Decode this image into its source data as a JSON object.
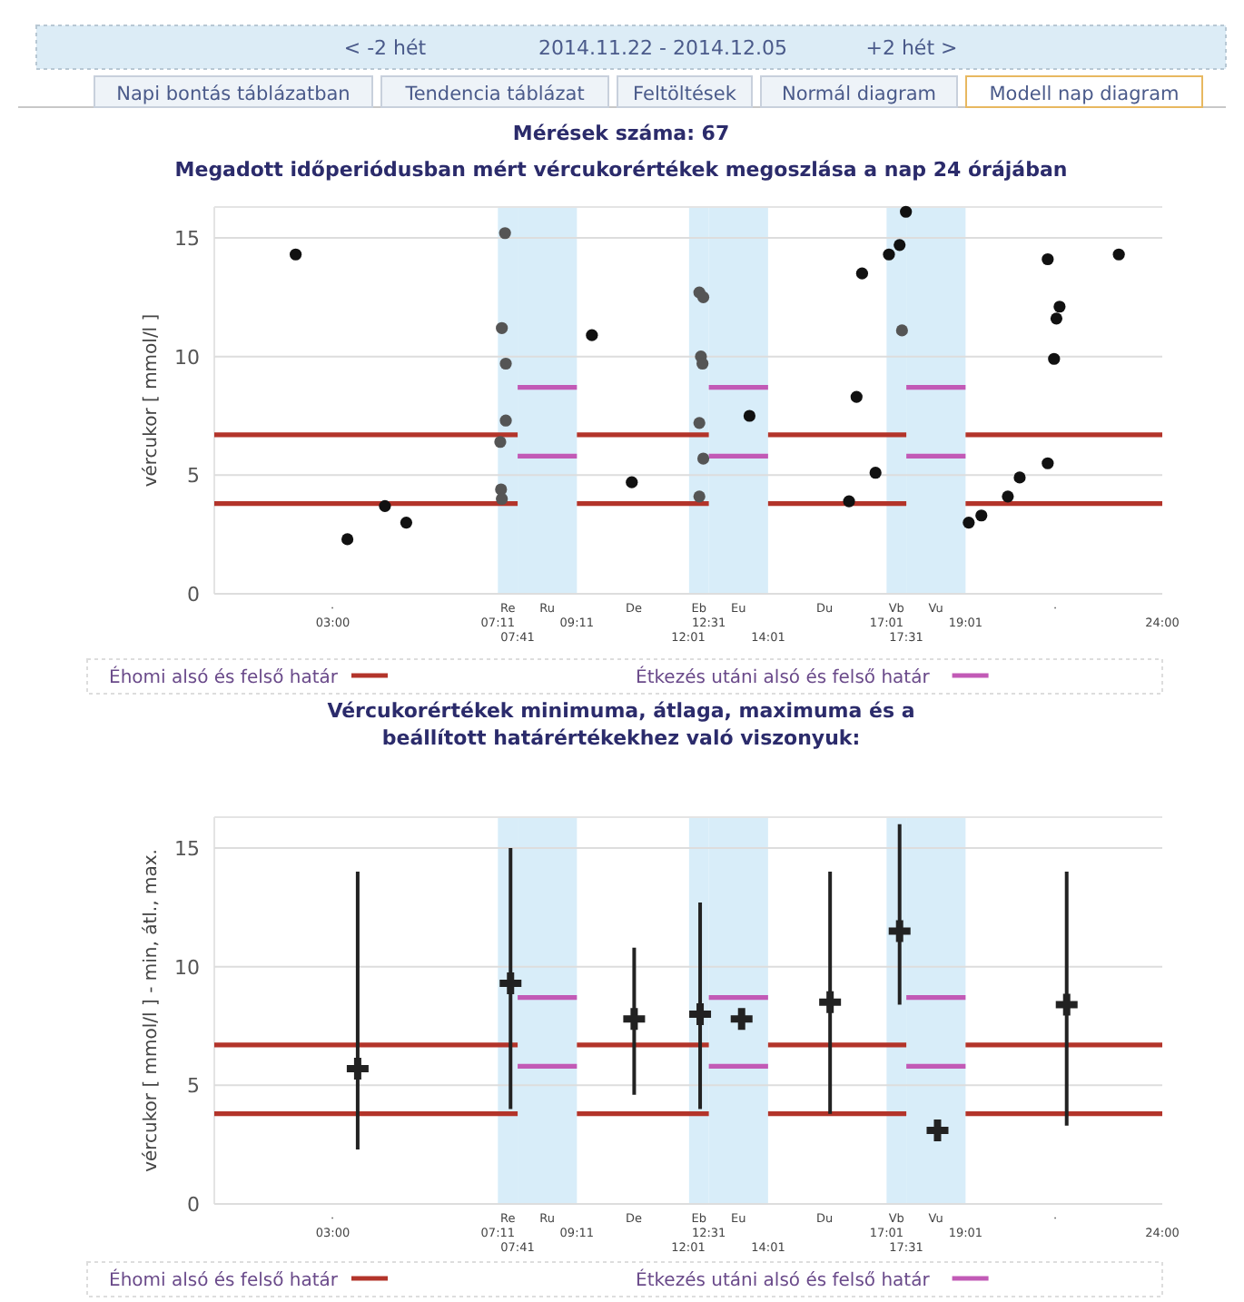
{
  "chart_data": [
    {
      "type": "other",
      "annotations": [
        "< -2 hét",
        "2014.11.22 - 2014.12.05",
        "+2 hét >",
        "Napi bontás táblázatban",
        "Tendencia táblázat",
        "Feltöltések",
        "Normál diagram",
        "Modell nap diagram",
        "Mérések száma: 67"
      ]
    },
    {
      "type": "scatter",
      "title": "Megadott időperiódusban mért vércukorértékek megoszlása a nap 24 órájában",
      "ylabel": "vércukor [ mmol/l ]",
      "xlim": [
        0,
        24
      ],
      "ylim": [
        0,
        16.3
      ],
      "yticks": [
        0,
        5,
        10,
        15
      ],
      "grid": "y",
      "legend": "bottom",
      "xticks": [
        {
          "value": 3,
          "label": "03:00"
        },
        {
          "value": 7.18,
          "label": "07:11"
        },
        {
          "value": 9.18,
          "label": "09:11"
        },
        {
          "value": 12.52,
          "label": "12:31"
        },
        {
          "value": 17.02,
          "label": "17:01"
        },
        {
          "value": 19.02,
          "label": "19:01"
        },
        {
          "value": 24,
          "label": "24:00"
        }
      ],
      "annotations": [
        "07:41",
        "12:01",
        "14:01",
        "17:31",
        "·",
        "De",
        "Du",
        "·"
      ],
      "bands": [
        {
          "axis": "x",
          "from": 7.18,
          "to": 7.68,
          "label": "Re",
          "color": "#d8edf9"
        },
        {
          "axis": "x",
          "from": 7.68,
          "to": 9.18,
          "label": "Ru",
          "color": "#d8edf9"
        },
        {
          "axis": "x",
          "from": 12.02,
          "to": 12.52,
          "label": "Eb",
          "color": "#d8edf9"
        },
        {
          "axis": "x",
          "from": 12.52,
          "to": 14.02,
          "label": "Eu",
          "color": "#d8edf9"
        },
        {
          "axis": "x",
          "from": 17.02,
          "to": 17.52,
          "label": "Vb",
          "color": "#d8edf9"
        },
        {
          "axis": "x",
          "from": 17.52,
          "to": 19.02,
          "label": "Vu",
          "color": "#d8edf9"
        }
      ],
      "series": [
        {
          "type": "line",
          "name": "Éhomi alsó és felső határ",
          "color": "#b3342a",
          "x": [
            0,
            7.68,
            8,
            9.18,
            12.52,
            13,
            14.02,
            17.52,
            18,
            19.02,
            24
          ],
          "values": [
            6.7,
            6.7,
            null,
            6.7,
            6.7,
            null,
            6.7,
            6.7,
            null,
            6.7,
            6.7
          ]
        },
        {
          "type": "line",
          "color": "#b3342a",
          "x": [
            0,
            7.68,
            8,
            9.18,
            12.52,
            13,
            14.02,
            17.52,
            18,
            19.02,
            24
          ],
          "values": [
            3.8,
            3.8,
            null,
            3.8,
            3.8,
            null,
            3.8,
            3.8,
            null,
            3.8,
            3.8
          ]
        },
        {
          "type": "line",
          "name": "Étkezés utáni alsó és felső határ",
          "color": "#c25ab6",
          "x": [
            7.68,
            9.18,
            10,
            12.52,
            14.02,
            15,
            17.52,
            19.02
          ],
          "values": [
            8.7,
            8.7,
            null,
            8.7,
            8.7,
            null,
            8.7,
            8.7
          ]
        },
        {
          "type": "line",
          "color": "#c25ab6",
          "x": [
            7.68,
            9.18,
            10,
            12.52,
            14.02,
            15,
            17.52,
            19.02
          ],
          "values": [
            5.8,
            5.8,
            null,
            5.8,
            5.8,
            null,
            5.8,
            5.8
          ]
        },
        {
          "type": "scatter",
          "color": "#111111",
          "marker": "circle",
          "x": [
            2.06,
            3.37,
            4.32,
            4.86,
            9.56,
            10.57,
            13.55,
            16.07,
            16.26,
            16.4,
            16.74,
            17.08,
            17.35,
            17.51,
            19.1,
            19.42,
            20.09,
            20.39,
            21.1,
            21.1,
            21.26,
            21.32,
            21.4,
            22.9
          ],
          "values": [
            14.3,
            2.3,
            3.7,
            3.0,
            10.9,
            4.7,
            7.5,
            3.9,
            8.3,
            13.5,
            5.1,
            14.3,
            14.7,
            16.1,
            3.0,
            3.3,
            4.1,
            4.9,
            5.5,
            14.1,
            9.9,
            11.6,
            12.1,
            14.3
          ]
        },
        {
          "type": "scatter",
          "color": "#555555",
          "marker": "circle",
          "x": [
            7.36,
            7.28,
            7.38,
            7.38,
            7.24,
            7.26,
            7.28,
            12.28,
            12.38,
            12.32,
            12.36,
            12.28,
            12.38,
            12.28,
            17.41
          ],
          "values": [
            15.2,
            11.2,
            9.7,
            7.3,
            6.4,
            4.4,
            4.0,
            12.7,
            12.5,
            10.0,
            9.7,
            7.2,
            5.7,
            4.1,
            11.1
          ]
        }
      ]
    },
    {
      "type": "scatter",
      "title": "Vércukorértékek minimuma, átlaga, maximuma és a beállított határértékekhez való viszonyuk:",
      "ylabel": "vércukor [ mmol/l ] - min, átl., max.",
      "xlim": [
        0,
        24
      ],
      "ylim": [
        0,
        16.3
      ],
      "yticks": [
        0,
        5,
        10,
        15
      ],
      "grid": "y",
      "legend": "bottom",
      "xticks": [
        {
          "value": 3,
          "label": "03:00"
        },
        {
          "value": 7.18,
          "label": "07:11"
        },
        {
          "value": 9.18,
          "label": "09:11"
        },
        {
          "value": 12.52,
          "label": "12:31"
        },
        {
          "value": 17.02,
          "label": "17:01"
        },
        {
          "value": 19.02,
          "label": "19:01"
        },
        {
          "value": 24,
          "label": "24:00"
        }
      ],
      "annotations": [
        "07:41",
        "12:01",
        "14:01",
        "17:31",
        "·",
        "De",
        "Du",
        "·"
      ],
      "bands": [
        {
          "axis": "x",
          "from": 7.18,
          "to": 7.68,
          "label": "Re",
          "color": "#d8edf9"
        },
        {
          "axis": "x",
          "from": 7.68,
          "to": 9.18,
          "label": "Ru",
          "color": "#d8edf9"
        },
        {
          "axis": "x",
          "from": 12.02,
          "to": 12.52,
          "label": "Eb",
          "color": "#d8edf9"
        },
        {
          "axis": "x",
          "from": 12.52,
          "to": 14.02,
          "label": "Eu",
          "color": "#d8edf9"
        },
        {
          "axis": "x",
          "from": 17.02,
          "to": 17.52,
          "label": "Vb",
          "color": "#d8edf9"
        },
        {
          "axis": "x",
          "from": 17.52,
          "to": 19.02,
          "label": "Vu",
          "color": "#d8edf9"
        }
      ],
      "series": [
        {
          "type": "line",
          "name": "Éhomi alsó és felső határ",
          "color": "#b3342a",
          "x": [
            0,
            7.68,
            8,
            9.18,
            12.52,
            13,
            14.02,
            17.52,
            18,
            19.02,
            24
          ],
          "values": [
            6.7,
            6.7,
            null,
            6.7,
            6.7,
            null,
            6.7,
            6.7,
            null,
            6.7,
            6.7
          ]
        },
        {
          "type": "line",
          "color": "#b3342a",
          "x": [
            0,
            7.68,
            8,
            9.18,
            12.52,
            13,
            14.02,
            17.52,
            18,
            19.02,
            24
          ],
          "values": [
            3.8,
            3.8,
            null,
            3.8,
            3.8,
            null,
            3.8,
            3.8,
            null,
            3.8,
            3.8
          ]
        },
        {
          "type": "line",
          "name": "Étkezés utáni alsó és felső határ",
          "color": "#c25ab6",
          "x": [
            7.68,
            9.18,
            10,
            12.52,
            14.02,
            15,
            17.52,
            19.02
          ],
          "values": [
            8.7,
            8.7,
            null,
            8.7,
            8.7,
            null,
            8.7,
            8.7
          ]
        },
        {
          "type": "line",
          "color": "#c25ab6",
          "x": [
            7.68,
            9.18,
            10,
            12.52,
            14.02,
            15,
            17.52,
            19.02
          ],
          "values": [
            5.8,
            5.8,
            null,
            5.8,
            5.8,
            null,
            5.8,
            5.8
          ]
        },
        {
          "type": "scatter",
          "color": "#222222",
          "marker": "cross",
          "x": [
            3.63,
            7.5,
            10.63,
            12.3,
            13.35,
            15.59,
            17.35,
            18.31,
            21.58
          ],
          "values": [
            5.7,
            9.3,
            7.8,
            8.0,
            7.8,
            8.5,
            11.5,
            3.1,
            8.4
          ],
          "errors": [
            [
              2.3,
              14.0
            ],
            [
              4.0,
              15.0
            ],
            [
              4.6,
              10.8
            ],
            [
              4.0,
              12.7
            ],
            [
              7.5,
              8.2
            ],
            [
              3.8,
              14.0
            ],
            [
              8.4,
              16.0
            ],
            null,
            [
              3.3,
              14.0
            ]
          ]
        }
      ]
    }
  ]
}
